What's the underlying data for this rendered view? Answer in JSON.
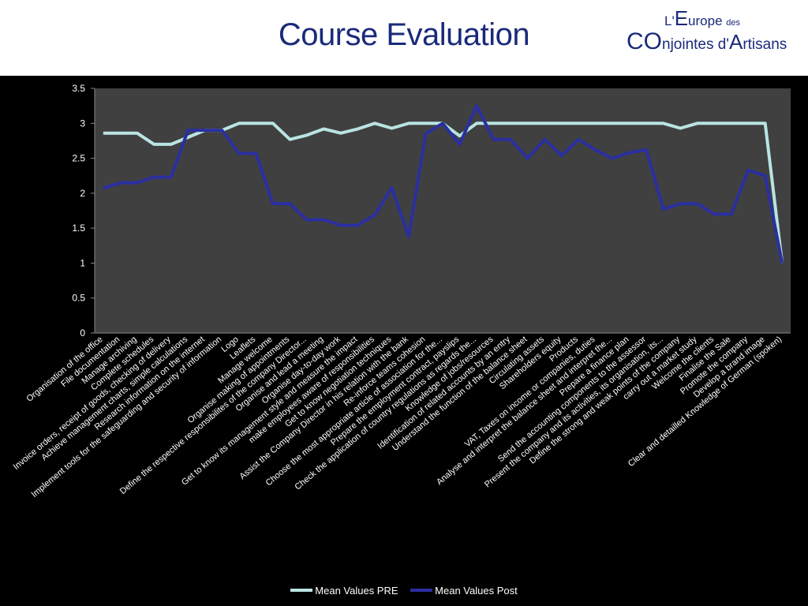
{
  "header": {
    "title": "Course Evaluation",
    "logo": {
      "line1_prefix": "L'",
      "line1_big": "E",
      "line1_rest": "urope",
      "line1_small": "des",
      "line2_a": "CO",
      "line2_b": "njointes d'",
      "line2_c": "A",
      "line2_d": "rtisans"
    }
  },
  "colors": {
    "pre": "#b9e4e2",
    "post": "#2a2fa0",
    "plot_bg": "#404040",
    "page_bg": "#000000"
  },
  "chart_data": {
    "type": "line",
    "title": "",
    "xlabel": "",
    "ylabel": "",
    "ylim": [
      0,
      3.5
    ],
    "yticks": [
      "0",
      "0.5",
      "1",
      "1.5",
      "2",
      "2.5",
      "3",
      "3.5"
    ],
    "grid": false,
    "legend": "bottom",
    "categories": [
      "Organisation of the office",
      "File documentation",
      "Manage archiving",
      "Complete schedules",
      "Invoice orders, receipt of goods, checking of delivery",
      "Achieve management charts, simple calculations",
      "Research information on the internet",
      "Implement tools for the safeguarding and security of information",
      "Logo",
      "Leaflets",
      "Manage welcome",
      "Organise making of appointments",
      "Define the respective responsibilites of the company Director...",
      "Organise and lead a meeting",
      "Organise day-to-day work",
      "Get to know its management style and measure the impact",
      "make employees aware of responsibilities",
      "Get to know negotiation techniques",
      "Assist the Company Director in his relation with the bank",
      "Re-inforce teams cohesion",
      "Choose the most appropriate article of association for the...",
      "Prepare the employment contract, payslips",
      "Check the application of country regulations as regards the...",
      "Knowledge of jobs/resources",
      "Identification of related accounts by an entry",
      "Understand the function of the balance sheet",
      "Circulating assets",
      "Shareholders equity",
      "Products",
      "VAT, Taxes on income or companies, duties",
      "Analyse and interpret the balance sheet and interpret the...",
      "Prepare a finance plan",
      "Send the accounting components to the assessor",
      "Present the company and its activities, its organisation, its...",
      "Define the strong and weak points of the company",
      "carry out a market study",
      "Welcome the clients",
      "Finalise the Sale",
      "Promote the company",
      "Develop a brand image",
      "Clear and detailled Knowledge of German (spoken)"
    ],
    "series": [
      {
        "name": "Mean Values PRE",
        "values": [
          2.86,
          2.86,
          2.86,
          2.7,
          2.7,
          2.8,
          2.9,
          2.9,
          3.0,
          3.0,
          3.0,
          2.77,
          2.83,
          2.92,
          2.86,
          2.92,
          3.0,
          2.93,
          3.0,
          3.0,
          3.0,
          2.82,
          3.0,
          3.0,
          3.0,
          3.0,
          3.0,
          3.0,
          3.0,
          3.0,
          3.0,
          3.0,
          3.0,
          3.0,
          2.93,
          3.0,
          3.0,
          3.0,
          3.0,
          3.0,
          1.0
        ]
      },
      {
        "name": "Mean Values Post",
        "values": [
          2.07,
          2.15,
          2.15,
          2.23,
          2.23,
          2.9,
          2.9,
          2.9,
          2.57,
          2.57,
          1.85,
          1.85,
          1.62,
          1.62,
          1.54,
          1.54,
          1.69,
          2.08,
          1.38,
          2.85,
          3.0,
          2.7,
          3.25,
          2.77,
          2.77,
          2.5,
          2.77,
          2.54,
          2.77,
          2.62,
          2.5,
          2.58,
          2.62,
          1.77,
          1.85,
          1.85,
          1.7,
          1.7,
          2.33,
          2.25,
          1.0
        ]
      }
    ]
  }
}
